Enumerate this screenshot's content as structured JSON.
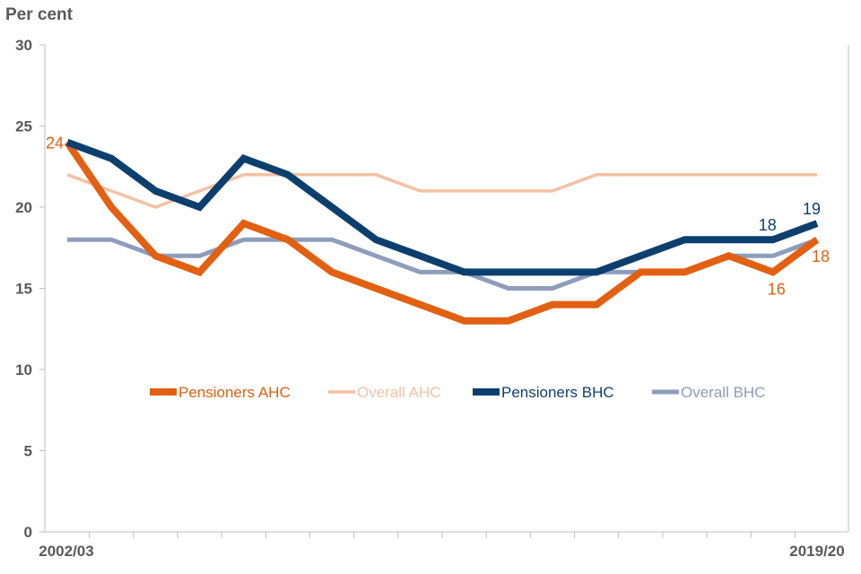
{
  "chart_data": {
    "type": "line",
    "ylabel": "Per cent",
    "ylim": [
      0,
      30
    ],
    "yticks": [
      0,
      5,
      10,
      15,
      20,
      25,
      30
    ],
    "x_first_label": "2002/03",
    "x_last_label": "2019/20",
    "n_points": 18,
    "series": [
      {
        "name": "Overall AHC",
        "color": "#f4c1a2",
        "width": "thin",
        "values": [
          22,
          21,
          20,
          21,
          22,
          22,
          22,
          22,
          21,
          21,
          21,
          21,
          22,
          22,
          22,
          22,
          22,
          22
        ]
      },
      {
        "name": "Overall BHC",
        "color": "#8d9dbb",
        "width": "medium",
        "values": [
          18,
          18,
          17,
          17,
          18,
          18,
          18,
          17,
          16,
          16,
          15,
          15,
          16,
          16,
          16,
          17,
          17,
          18
        ]
      },
      {
        "name": "Pensioners AHC",
        "color": "#e26012",
        "width": "thick",
        "values": [
          24,
          20,
          17,
          16,
          19,
          18,
          16,
          15,
          14,
          13,
          13,
          14,
          14,
          16,
          16,
          17,
          16,
          18
        ]
      },
      {
        "name": "Pensioners BHC",
        "color": "#0d3f6e",
        "width": "thick",
        "values": [
          24,
          23,
          21,
          20,
          23,
          22,
          20,
          18,
          17,
          16,
          16,
          16,
          16,
          17,
          18,
          18,
          18,
          19
        ]
      }
    ],
    "legend_order": [
      "Pensioners AHC",
      "Overall AHC",
      "Pensioners BHC",
      "Overall BHC"
    ],
    "data_labels": [
      {
        "series": "Pensioners AHC",
        "index": 0,
        "text": "24",
        "position": "left"
      },
      {
        "series": "Pensioners BHC",
        "index": 16,
        "text": "18",
        "position": "above"
      },
      {
        "series": "Pensioners BHC",
        "index": 17,
        "text": "19",
        "position": "above"
      },
      {
        "series": "Pensioners AHC",
        "index": 16,
        "text": "16",
        "position": "below"
      },
      {
        "series": "Pensioners AHC",
        "index": 17,
        "text": "18",
        "position": "below"
      }
    ]
  }
}
